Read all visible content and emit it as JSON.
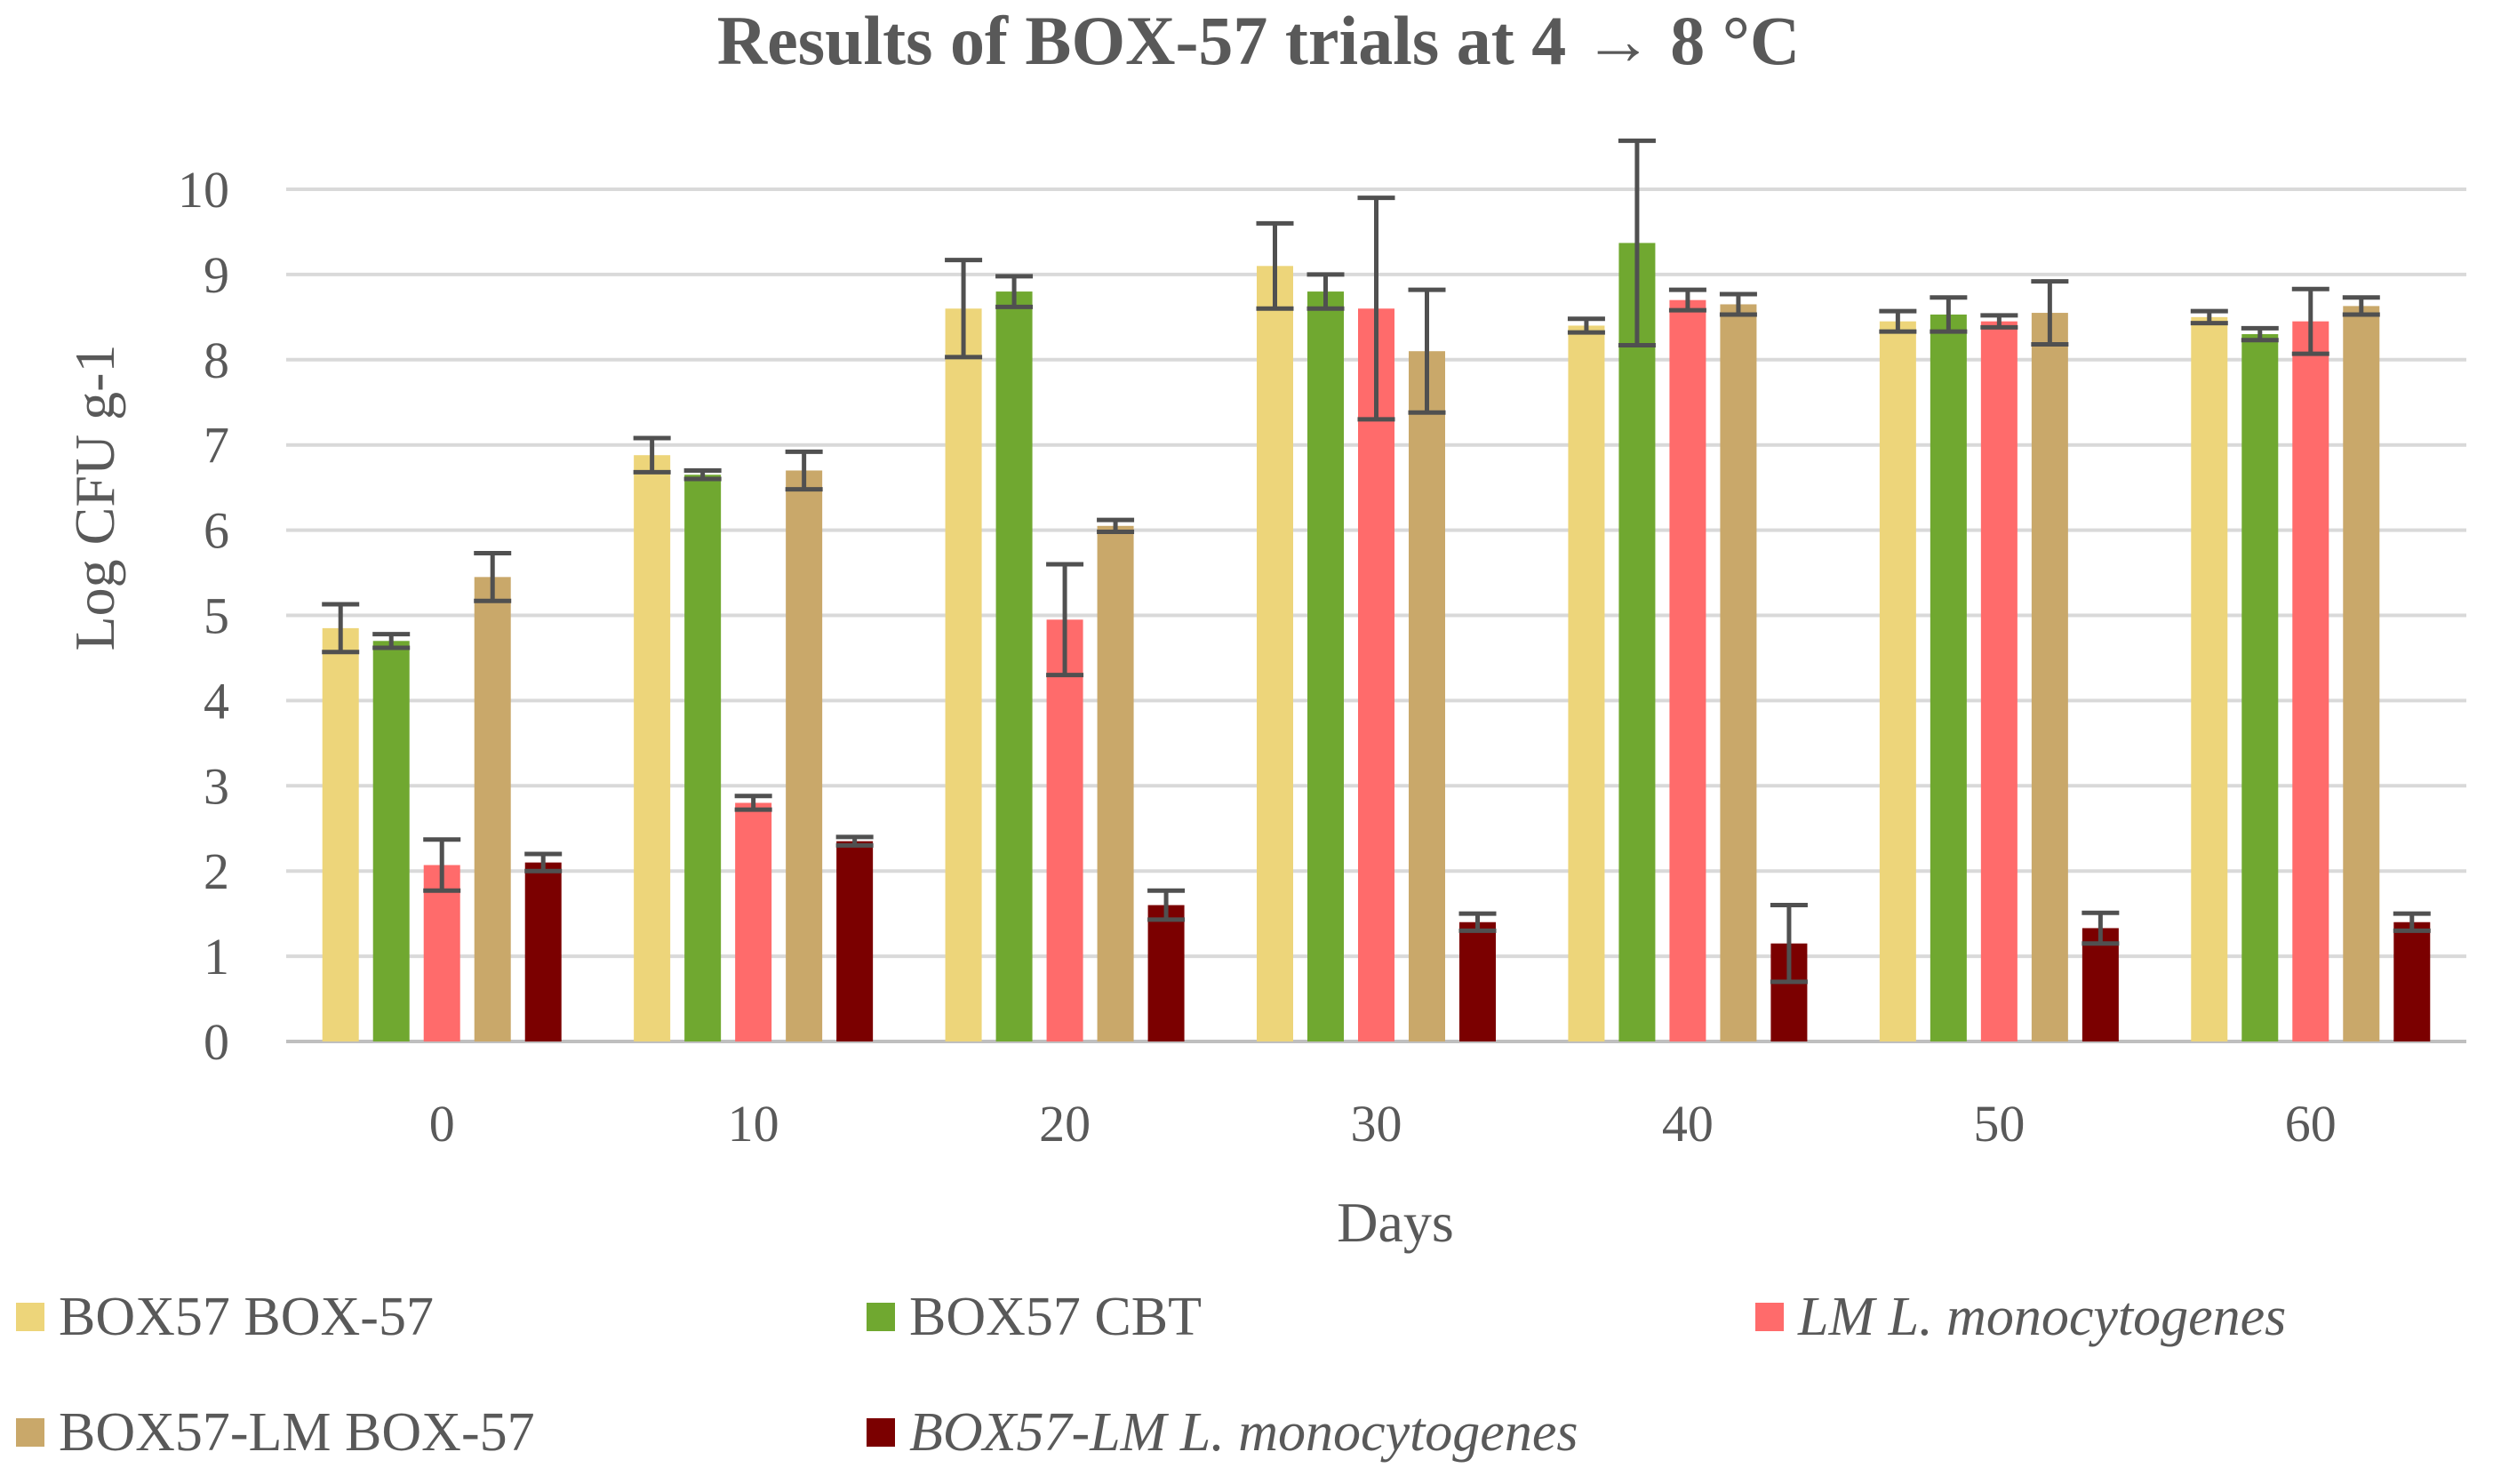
{
  "chart_data": {
    "type": "bar",
    "title": "Results of BOX-57 trials at 4 → 8 °C",
    "xlabel": "Days",
    "ylabel": "Log CFU g-1",
    "ylim": [
      0,
      10
    ],
    "yticks": [
      "0",
      "1",
      "2",
      "3",
      "4",
      "5",
      "6",
      "7",
      "8",
      "9",
      "10"
    ],
    "grid": true,
    "categories": [
      "0",
      "10",
      "20",
      "30",
      "40",
      "50",
      "60"
    ],
    "series": [
      {
        "name": "BOX57 BOX-57",
        "italic": false,
        "color": "#EDD57A",
        "values": [
          4.85,
          6.88,
          8.6,
          9.1,
          8.4,
          8.45,
          8.5
        ],
        "errors": [
          0.28,
          0.2,
          0.57,
          0.5,
          0.08,
          0.12,
          0.07
        ]
      },
      {
        "name": "BOX57 CBT",
        "italic": false,
        "color": "#70A830",
        "values": [
          4.7,
          6.65,
          8.8,
          8.8,
          9.37,
          8.53,
          8.3
        ],
        "errors": [
          0.08,
          0.05,
          0.18,
          0.2,
          1.2,
          0.2,
          0.07
        ]
      },
      {
        "name": "LM L. monocytogenes",
        "italic": true,
        "color": "#FF6B6B",
        "values": [
          2.07,
          2.8,
          4.95,
          8.6,
          8.7,
          8.45,
          8.45
        ],
        "errors": [
          0.3,
          0.08,
          0.65,
          1.3,
          0.12,
          0.07,
          0.38
        ]
      },
      {
        "name": "BOX57-LM BOX-57",
        "italic": false,
        "color": "#C9A86A",
        "values": [
          5.45,
          6.7,
          6.05,
          8.1,
          8.65,
          8.55,
          8.63
        ],
        "errors": [
          0.28,
          0.22,
          0.07,
          0.72,
          0.12,
          0.37,
          0.1
        ]
      },
      {
        "name": "BOX57-LM L. monocytogenes",
        "italic": true,
        "color": "#7B0000",
        "values": [
          2.1,
          2.35,
          1.6,
          1.4,
          1.15,
          1.33,
          1.4
        ],
        "errors": [
          0.1,
          0.05,
          0.17,
          0.1,
          0.45,
          0.18,
          0.1
        ]
      }
    ]
  }
}
